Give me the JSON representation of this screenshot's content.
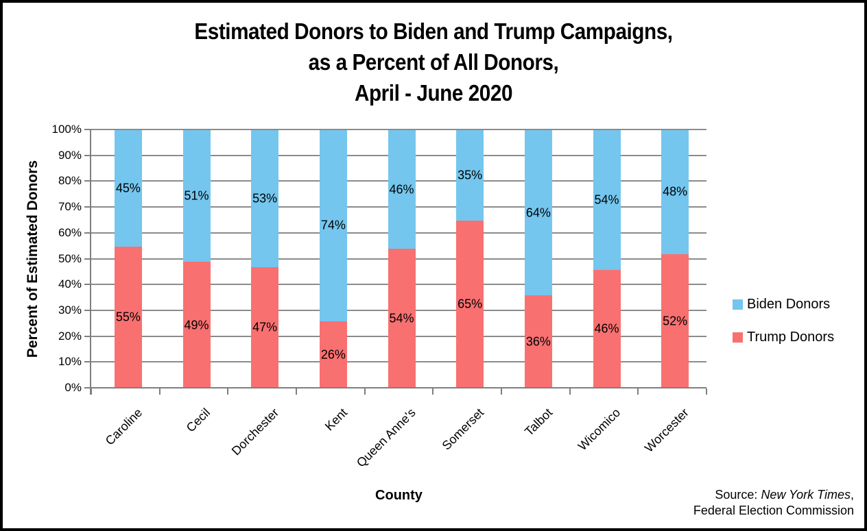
{
  "page": {
    "background": "#FFFFFF",
    "border_color": "#000000"
  },
  "chart_data": {
    "type": "bar",
    "stacked": true,
    "title": "Estimated Donors to Biden and Trump Campaigns, as a Percent of All Donors, April - June 2020",
    "title_lines": [
      "Estimated Donors to Biden and Trump Campaigns,",
      "as a Percent of All Donors,",
      "April - June 2020"
    ],
    "categories": [
      "Caroline",
      "Cecil",
      "Dorchester",
      "Kent",
      "Queen Anne's",
      "Somerset",
      "Talbot",
      "Wicomico",
      "Worcester"
    ],
    "series": [
      {
        "name": "Trump Donors",
        "color": "#F97070",
        "values": [
          55,
          49,
          47,
          26,
          54,
          65,
          36,
          46,
          52
        ]
      },
      {
        "name": "Biden Donors",
        "color": "#74C6EE",
        "values": [
          45,
          51,
          53,
          74,
          46,
          35,
          64,
          54,
          48
        ]
      }
    ],
    "xlabel": "County",
    "ylabel": "Percent of Estimated Donors",
    "ylim": [
      0,
      100
    ],
    "ytick_step": 10,
    "ytick_suffix": "%",
    "value_label_suffix": "%",
    "grid": true,
    "gridline_color": "#8B8B8B",
    "axis_color": "#7F7F7F",
    "legend_position": "right"
  },
  "legend": {
    "items": [
      {
        "label": "Biden Donors",
        "color": "#74C6EE"
      },
      {
        "label": "Trump Donors",
        "color": "#F97070"
      }
    ]
  },
  "source_note": {
    "prefix": "Source: ",
    "italic_text": "New York Times",
    "after_italic": ",",
    "line2": "Federal Election Commission"
  }
}
